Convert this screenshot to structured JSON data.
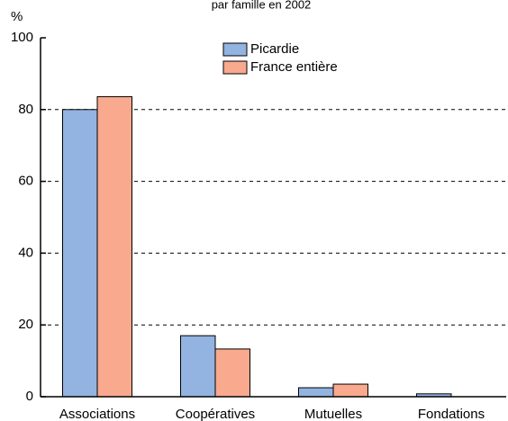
{
  "chart_data": {
    "type": "bar",
    "title": "par famille en 2002",
    "y_label": "%",
    "categories": [
      "Associations",
      "Coopératives",
      "Mutuelles",
      "Fondations"
    ],
    "series": [
      {
        "name": "Picardie",
        "color": "#93b3e0",
        "values": [
          80,
          17,
          2.5,
          0.8
        ]
      },
      {
        "name": "France entière",
        "color": "#f8a98e",
        "values": [
          83.6,
          13.3,
          3.5,
          0
        ]
      }
    ],
    "ylim": [
      0,
      100
    ],
    "yticks": [
      0,
      20,
      40,
      60,
      80,
      100
    ],
    "grid": true,
    "legend": "top"
  }
}
